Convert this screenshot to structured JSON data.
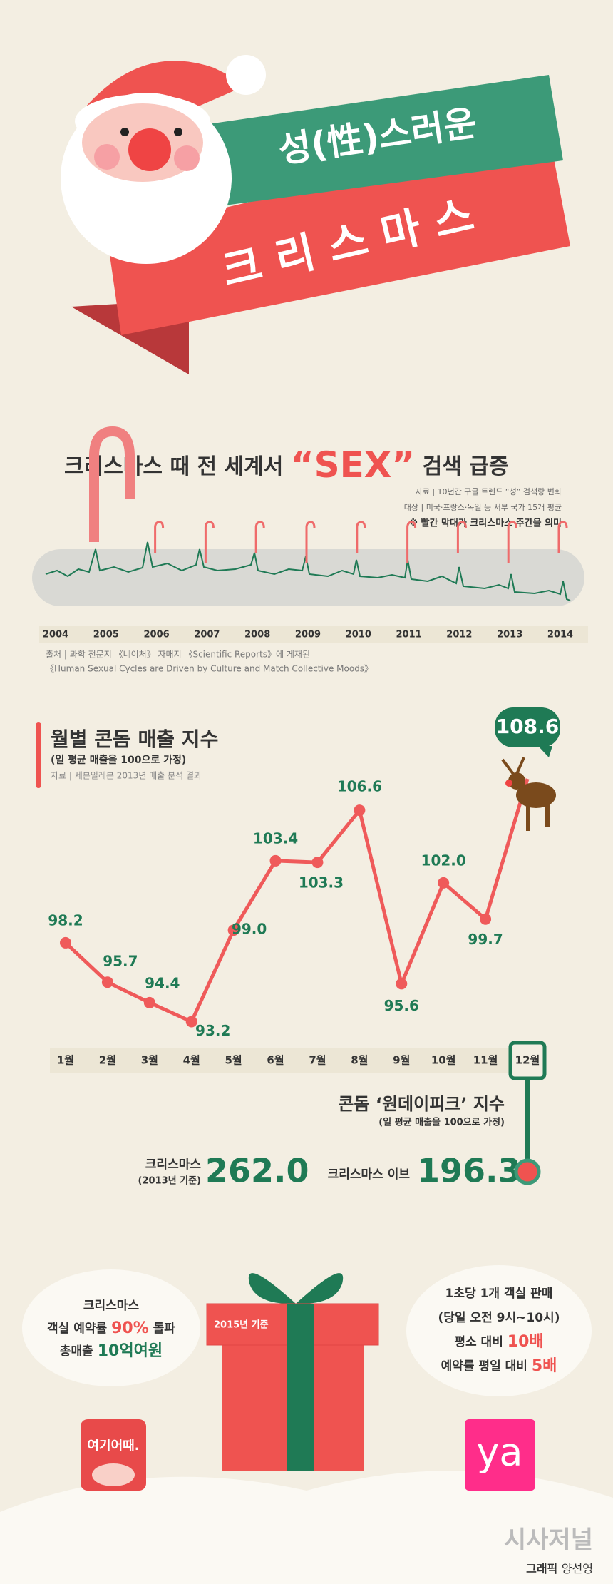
{
  "header": {
    "title_top": "성(性)스러운",
    "title_bottom": "크 리 스 마 스"
  },
  "trend": {
    "title_pre": "크리스마스 때 전 세계서 ",
    "title_hi": "“SEX”",
    "title_post": " 검색 급증",
    "notes": [
      "자료 | 10년간 구글 트렌드 “성” 검색량 변화",
      "대상 | 미국·프랑스·독일 등 서부 국가 15개 평균",
      "※ 빨간 막대가 크리스마스 주간을 의미"
    ],
    "years": [
      "2004",
      "2005",
      "2006",
      "2007",
      "2008",
      "2009",
      "2010",
      "2011",
      "2012",
      "2013",
      "2014"
    ],
    "source": [
      "출처 | 과학 전문지 《네이처》 자매지 《Scientific Reports》에 게재된",
      "《Human Sexual Cycles are Driven by Culture and Match Collective Moods》"
    ]
  },
  "chart_data": {
    "type": "line",
    "title": "월별 콘돔 매출 지수",
    "subtitle": "(일 평균 매출을 100으로 가정)",
    "source": "자료 | 세븐일레븐 2013년 매출 분석 결과",
    "categories": [
      "1월",
      "2월",
      "3월",
      "4월",
      "5월",
      "6월",
      "7월",
      "8월",
      "9월",
      "10월",
      "11월",
      "12월"
    ],
    "values": [
      98.2,
      95.7,
      94.4,
      93.2,
      99.0,
      103.4,
      103.3,
      106.6,
      95.6,
      102.0,
      99.7,
      108.6
    ],
    "value_labels": [
      "98.2",
      "95.7",
      "94.4",
      "93.2",
      "99.0",
      "103.4",
      "103.3",
      "106.6",
      "95.6",
      "102.0",
      "99.7",
      "108.6"
    ],
    "color": "#ef5a5a",
    "ylim": [
      92,
      110
    ]
  },
  "peak": {
    "title": "콘돔 ‘원데이피크’ 지수",
    "subtitle": "(일 평균 매출을 100으로 가정)",
    "xmas_label": "크리스마스",
    "xmas_note": "(2013년 기준)",
    "xmas_value": "262.0",
    "eve_label": "크리스마스 이브",
    "eve_value": "196.3"
  },
  "bottom": {
    "left_lines": [
      {
        "pre": "크리스마스"
      },
      {
        "pre": "객실 예약률 ",
        "hi": "90%",
        "post": " 돌파"
      },
      {
        "pre": "총매출 ",
        "hi": "10억여원"
      }
    ],
    "gift_label": "2015년 기준",
    "right_lines": [
      {
        "pre": "1초당 1개 객실 판매"
      },
      {
        "pre": "(당일 오전 9시~10시)"
      },
      {
        "pre": "평소 대비 ",
        "hi": "10배"
      },
      {
        "pre": "예약률 평일 대비 ",
        "hi": "5배"
      }
    ],
    "left_logo": "여기어때.",
    "right_logo": "ya",
    "publisher": "시사저널",
    "credit_pre": "그래픽 ",
    "credit_name": "양선영"
  }
}
